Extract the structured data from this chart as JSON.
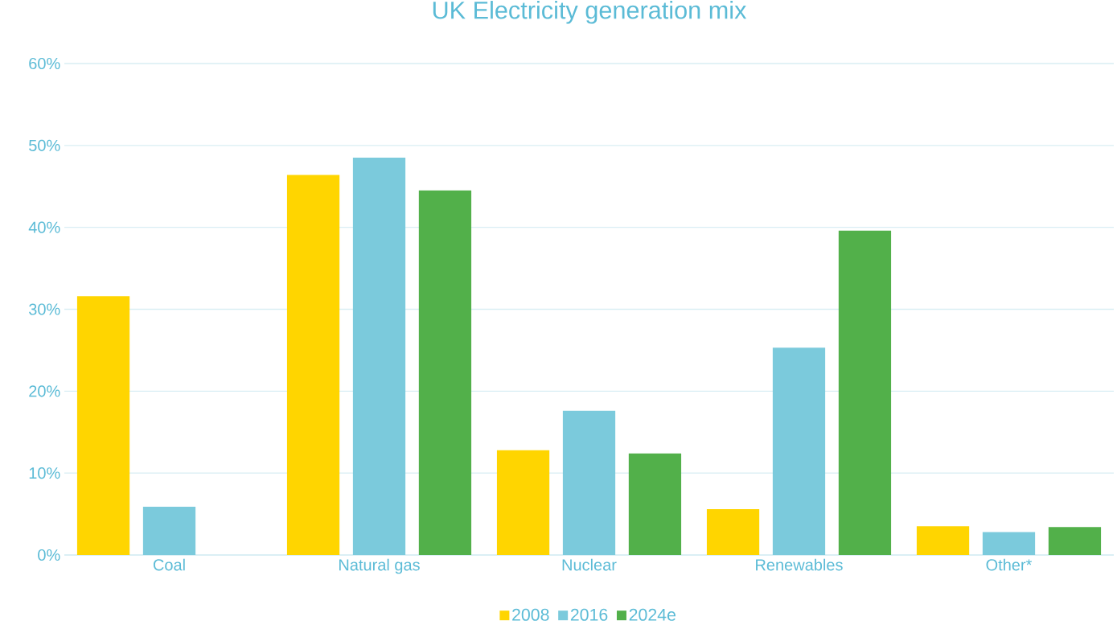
{
  "chart_data": {
    "type": "bar",
    "title": "UK Electricity generation mix",
    "categories": [
      "Coal",
      "Natural gas",
      "Nuclear",
      "Renewables",
      "Other*"
    ],
    "series": [
      {
        "name": "2008",
        "color": "#ffd500",
        "values": [
          31.6,
          46.4,
          12.8,
          5.6,
          3.5
        ]
      },
      {
        "name": "2016",
        "color": "#7bcadc",
        "values": [
          5.9,
          48.5,
          17.6,
          25.3,
          2.8
        ]
      },
      {
        "name": "2024e",
        "color": "#52b04a",
        "values": [
          null,
          44.5,
          12.4,
          39.6,
          3.4
        ]
      }
    ],
    "ylim": [
      0,
      60
    ],
    "yticks": [
      {
        "value": 0,
        "label": "0%"
      },
      {
        "value": 10,
        "label": "10%"
      },
      {
        "value": 20,
        "label": "20%"
      },
      {
        "value": 30,
        "label": "30%"
      },
      {
        "value": 40,
        "label": "40%"
      },
      {
        "value": 50,
        "label": "50%"
      },
      {
        "value": 60,
        "label": "60%"
      }
    ],
    "grid": "y",
    "legend": "bottom"
  }
}
